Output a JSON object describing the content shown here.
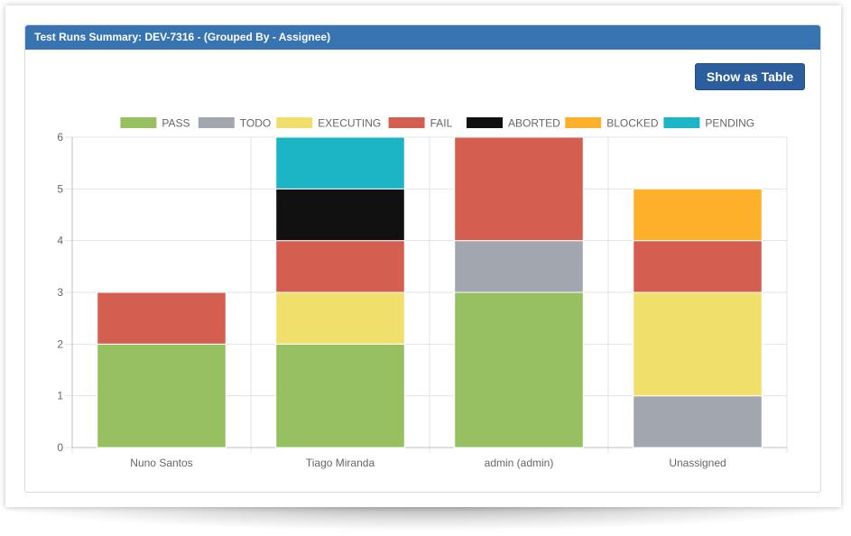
{
  "panel": {
    "title": "Test Runs Summary: DEV-7316 - (Grouped By - Assignee)",
    "toggle_button_label": "Show as Table"
  },
  "colors": {
    "header_bg": "#3874b2",
    "button_bg": "#2c5e9d"
  },
  "chart_data": {
    "type": "bar",
    "stacked": true,
    "categories": [
      "Nuno Santos",
      "Tiago Miranda",
      "admin (admin)",
      "Unassigned"
    ],
    "series": [
      {
        "name": "PASS",
        "color": "#97c160",
        "values": [
          2,
          2,
          3,
          0
        ]
      },
      {
        "name": "TODO",
        "color": "#a2a6ae",
        "values": [
          0,
          0,
          1,
          1
        ]
      },
      {
        "name": "EXECUTING",
        "color": "#f1df6b",
        "values": [
          0,
          1,
          0,
          2
        ]
      },
      {
        "name": "FAIL",
        "color": "#d45f51",
        "values": [
          1,
          1,
          2,
          1
        ]
      },
      {
        "name": "ABORTED",
        "color": "#111111",
        "values": [
          0,
          1,
          0,
          0
        ]
      },
      {
        "name": "BLOCKED",
        "color": "#fdb12b",
        "values": [
          0,
          0,
          0,
          1
        ]
      },
      {
        "name": "PENDING",
        "color": "#1bb5c6",
        "values": [
          0,
          1,
          0,
          0
        ]
      }
    ],
    "ylim": [
      0,
      6
    ],
    "yticks": [
      "0",
      "1",
      "2",
      "3",
      "4",
      "5",
      "6"
    ],
    "grid": true,
    "legend_position": "top"
  }
}
